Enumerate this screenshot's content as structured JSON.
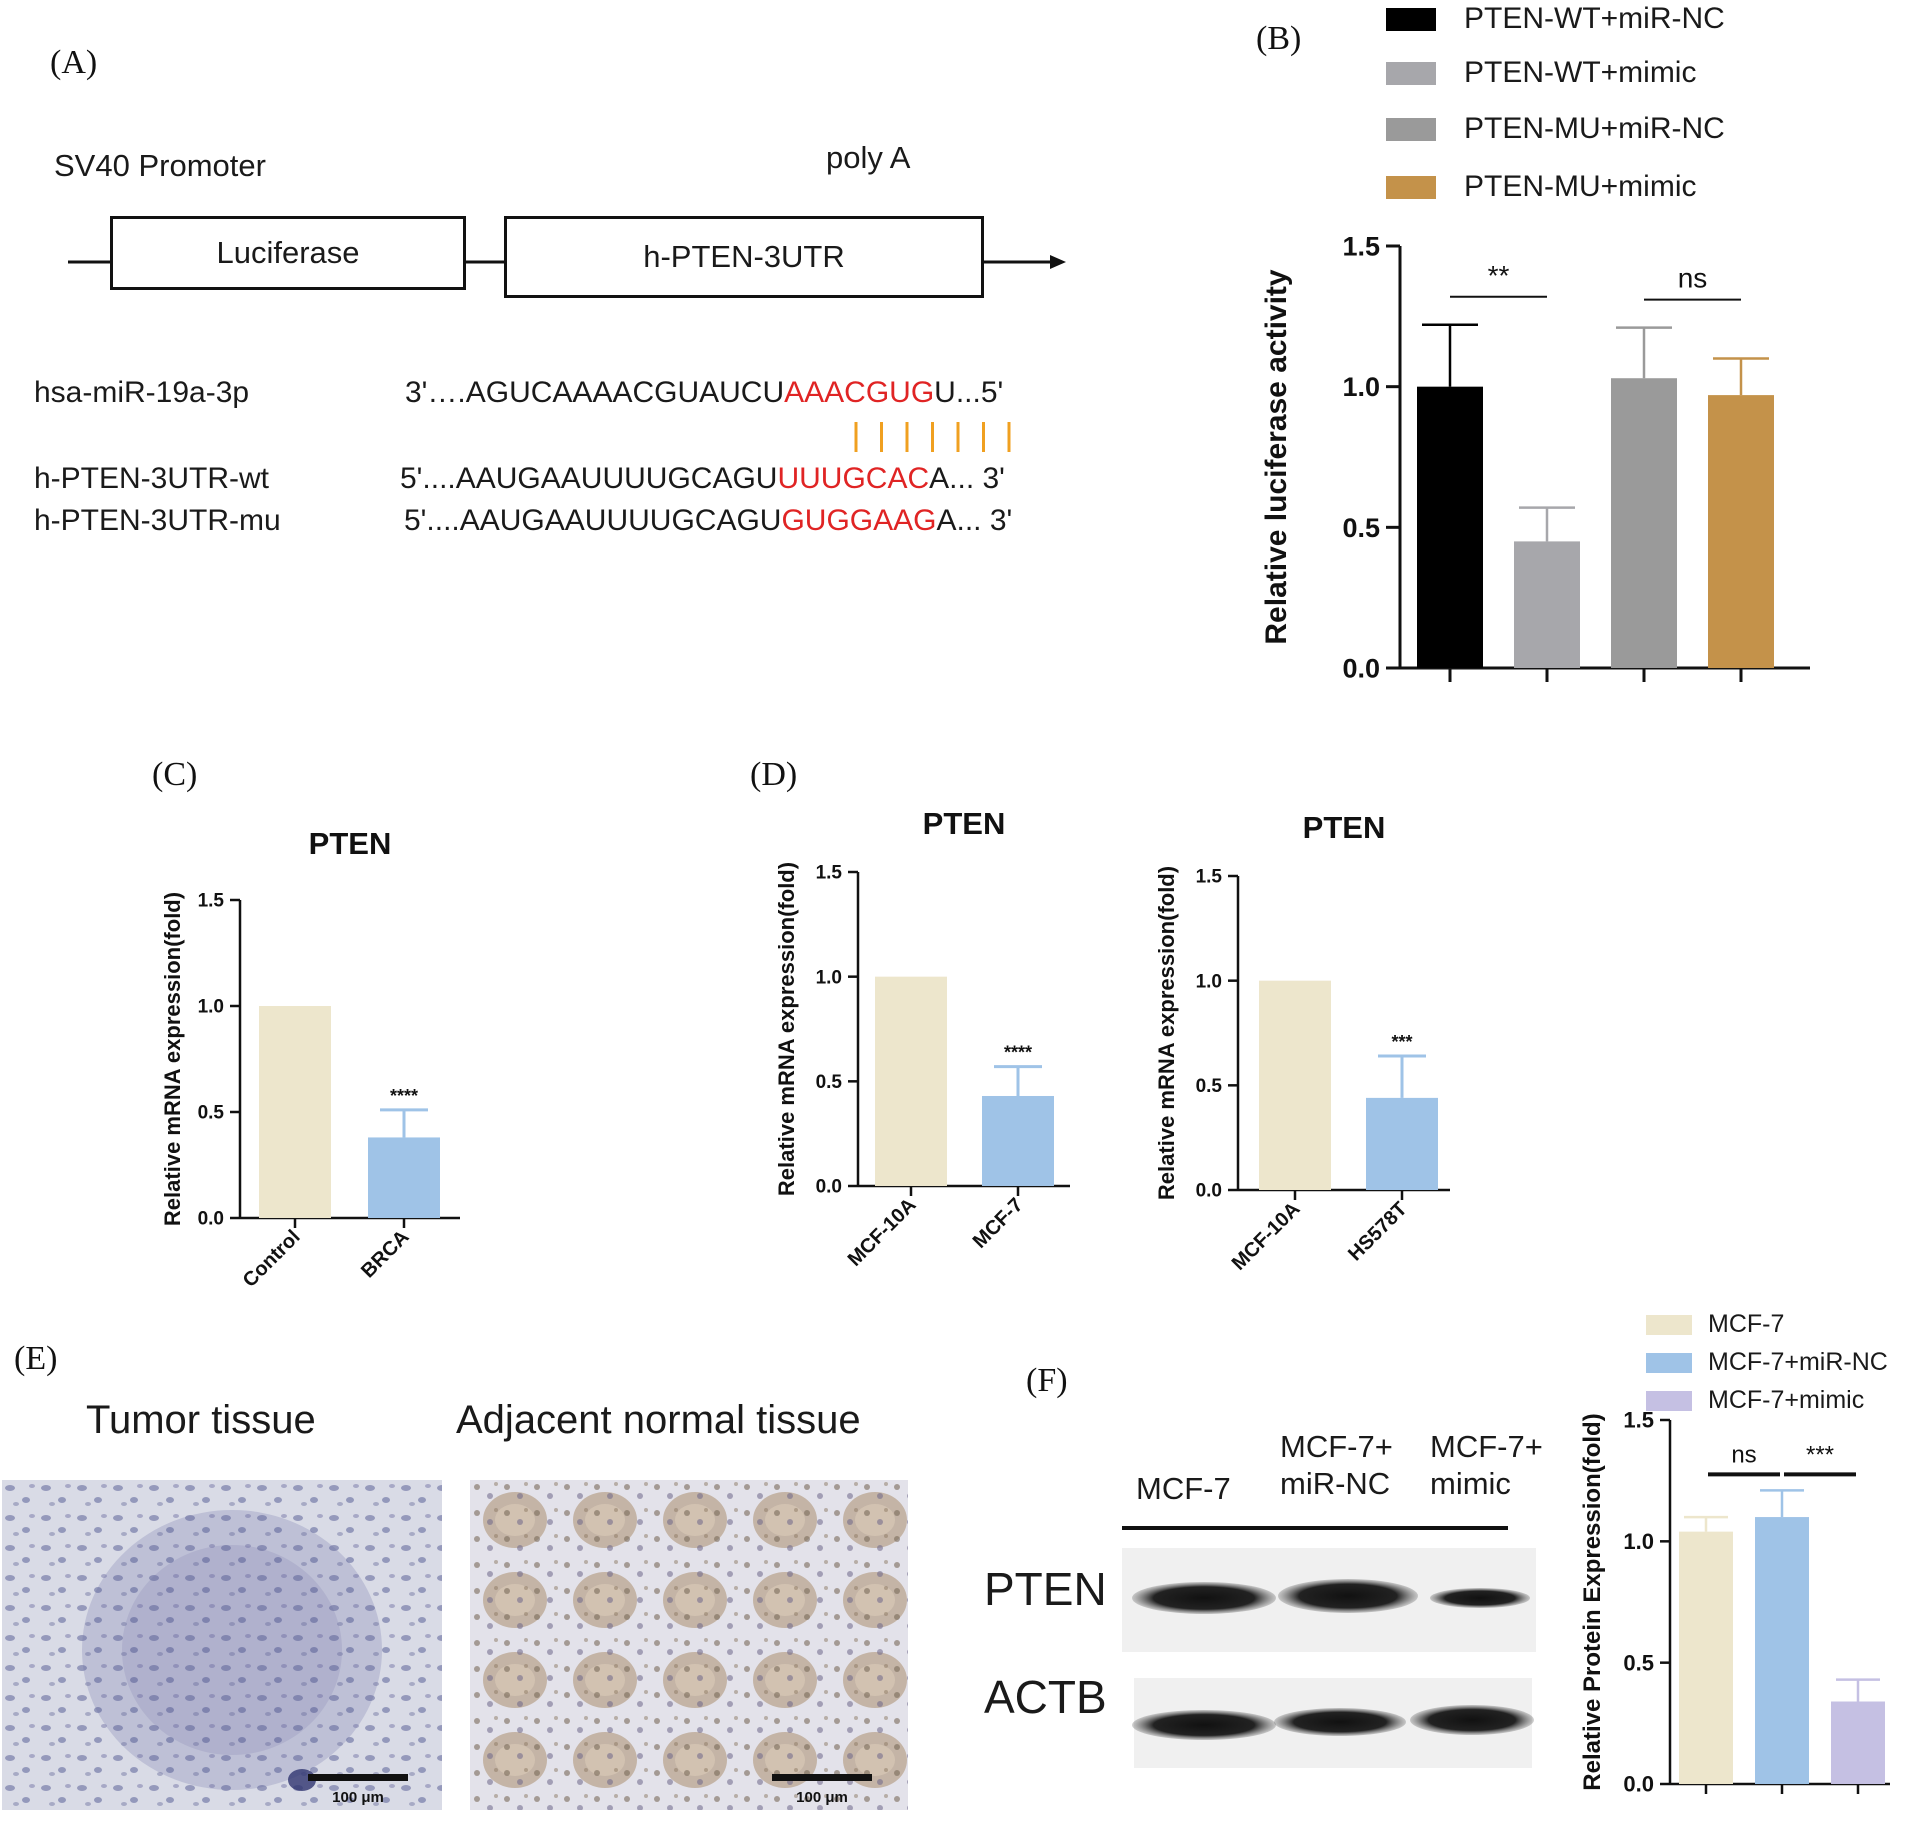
{
  "panel_a": {
    "letter": "(A)",
    "promoter_label": "SV40 Promoter",
    "polya_label": "poly A",
    "box1_label": "Luciferase",
    "box2_label": "h-PTEN-3UTR",
    "rows": [
      {
        "name": "hsa-miR-19a-3p",
        "prefix": "3'….AGUCAAAACGUAUCU",
        "highlight": "AAACGUG",
        "suffix": "U...5'"
      },
      {
        "name": "h-PTEN-3UTR-wt",
        "prefix": "5'....AAUGAAUUUUGCAGU",
        "highlight": "UUUGCAC",
        "suffix": "A... 3'"
      },
      {
        "name": "h-PTEN-3UTR-mu",
        "prefix": "5'....AAUGAAUUUUGCAGU",
        "highlight": "GUGGAAG",
        "suffix": "A... 3'"
      }
    ],
    "pairing_marks": 7,
    "colors": {
      "highlight": "#e02424",
      "pairing": "#f0a020"
    }
  },
  "panel_b": {
    "letter": "(B)",
    "legend": [
      {
        "label": "PTEN-WT+miR-NC",
        "color": "#000000"
      },
      {
        "label": "PTEN-WT+mimic",
        "color": "#a7a7ab"
      },
      {
        "label": "PTEN-MU+miR-NC",
        "color": "#9a9a9a"
      },
      {
        "label": "PTEN-MU+mimic",
        "color": "#c4924a"
      }
    ]
  },
  "panel_c": {
    "letter": "(C)"
  },
  "panel_d": {
    "letter": "(D)"
  },
  "panel_e": {
    "letter": "(E)",
    "titles": [
      "Tumor tissue",
      "Adjacent normal tissue"
    ],
    "scale_bar_label": "100 μm"
  },
  "panel_f": {
    "letter": "(F)",
    "blot_columns": [
      "MCF-7",
      "MCF-7+\nmiR-NC",
      "MCF-7+\nmimic"
    ],
    "blot_rows": [
      "PTEN",
      "ACTB"
    ],
    "legend": [
      {
        "label": "MCF-7",
        "color": "#ede6cc"
      },
      {
        "label": "MCF-7+miR-NC",
        "color": "#9fc3e7"
      },
      {
        "label": "MCF-7+mimic",
        "color": "#c5c0e3"
      }
    ]
  },
  "chart_data": [
    {
      "panel": "B",
      "type": "bar",
      "title": "",
      "xlabel": "",
      "ylabel": "Relative luciferase activity",
      "ylim": [
        0,
        1.5
      ],
      "yticks": [
        "0.0",
        "0.5",
        "1.0",
        "1.5"
      ],
      "categories": [
        "PTEN-WT+miR-NC",
        "PTEN-WT+mimic",
        "PTEN-MU+miR-NC",
        "PTEN-MU+mimic"
      ],
      "values": [
        1.0,
        0.45,
        1.03,
        0.97
      ],
      "errors": [
        0.22,
        0.12,
        0.18,
        0.13
      ],
      "colors": [
        "#000000",
        "#a7a7ab",
        "#9a9a9a",
        "#c4924a"
      ],
      "significance": [
        {
          "pair": [
            0,
            1
          ],
          "label": "**"
        },
        {
          "pair": [
            2,
            3
          ],
          "label": "ns"
        }
      ]
    },
    {
      "panel": "C",
      "type": "bar",
      "title": "PTEN",
      "ylabel": "Relative mRNA expression(fold)",
      "ylim": [
        0,
        1.5
      ],
      "yticks": [
        "0.0",
        "0.5",
        "1.0",
        "1.5"
      ],
      "categories": [
        "Control",
        "BRCA"
      ],
      "values": [
        1.0,
        0.38
      ],
      "errors": [
        0,
        0.13
      ],
      "colors": [
        "#ede6cc",
        "#9fc3e7"
      ],
      "significance": [
        {
          "bar": 1,
          "label": "****"
        }
      ]
    },
    {
      "panel": "D1",
      "type": "bar",
      "title": "PTEN",
      "ylabel": "Relative mRNA expression(fold)",
      "ylim": [
        0,
        1.5
      ],
      "yticks": [
        "0.0",
        "0.5",
        "1.0",
        "1.5"
      ],
      "categories": [
        "MCF-10A",
        "MCF-7"
      ],
      "values": [
        1.0,
        0.43
      ],
      "errors": [
        0,
        0.14
      ],
      "colors": [
        "#ede6cc",
        "#9fc3e7"
      ],
      "significance": [
        {
          "bar": 1,
          "label": "****"
        }
      ]
    },
    {
      "panel": "D2",
      "type": "bar",
      "title": "PTEN",
      "ylabel": "Relative mRNA expression(fold)",
      "ylim": [
        0,
        1.5
      ],
      "yticks": [
        "0.0",
        "0.5",
        "1.0",
        "1.5"
      ],
      "categories": [
        "MCF-10A",
        "HS578T"
      ],
      "values": [
        1.0,
        0.44
      ],
      "errors": [
        0,
        0.2
      ],
      "colors": [
        "#ede6cc",
        "#9fc3e7"
      ],
      "significance": [
        {
          "bar": 1,
          "label": "***"
        }
      ]
    },
    {
      "panel": "F",
      "type": "bar",
      "title": "",
      "ylabel": "Relative Protein Expression(fold)",
      "ylim": [
        0,
        1.5
      ],
      "yticks": [
        "0.0",
        "0.5",
        "1.0",
        "1.5"
      ],
      "categories": [
        "MCF-7",
        "MCF-7+miR-NC",
        "MCF-7+mimic"
      ],
      "values": [
        1.04,
        1.1,
        0.34
      ],
      "errors": [
        0.06,
        0.11,
        0.09
      ],
      "colors": [
        "#ede6cc",
        "#9fc3e7",
        "#c5c0e3"
      ],
      "significance": [
        {
          "pair": [
            0,
            1
          ],
          "label": "ns"
        },
        {
          "pair": [
            1,
            2
          ],
          "label": "***"
        }
      ]
    }
  ]
}
